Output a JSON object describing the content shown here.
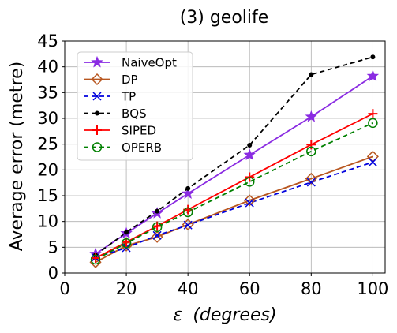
{
  "chart_data": {
    "type": "line",
    "title": "(3) geolife",
    "xlabel_symbol": "ε",
    "xlabel_unit": "(degrees)",
    "ylabel": "Average error (metre)",
    "xlim": [
      0,
      104
    ],
    "ylim": [
      0,
      45
    ],
    "xticks": [
      0,
      20,
      40,
      60,
      80,
      100
    ],
    "yticks": [
      0,
      5,
      10,
      15,
      20,
      25,
      30,
      35,
      40,
      45
    ],
    "grid": true,
    "legend_position": "top-left",
    "x": [
      10,
      20,
      30,
      40,
      60,
      80,
      100
    ],
    "series": [
      {
        "name": "NaiveOpt",
        "color": "#8a2be2",
        "marker": "star",
        "dash": "solid",
        "values": [
          3.7,
          7.7,
          11.6,
          15.4,
          22.9,
          30.3,
          38.2
        ]
      },
      {
        "name": "DP",
        "color": "#b8561f",
        "marker": "diamond",
        "dash": "solid",
        "values": [
          2.1,
          5.3,
          7.0,
          9.4,
          14.1,
          18.3,
          22.6
        ]
      },
      {
        "name": "TP",
        "color": "#0000dd",
        "marker": "x",
        "dash": "dashed",
        "values": [
          3.0,
          4.9,
          7.3,
          9.3,
          13.6,
          17.6,
          21.5
        ]
      },
      {
        "name": "BQS",
        "color": "#000000",
        "marker": "dot",
        "dash": "dashed",
        "values": [
          3.5,
          7.9,
          12.0,
          16.4,
          24.8,
          38.5,
          41.9
        ]
      },
      {
        "name": "SIPED",
        "color": "#ff0000",
        "marker": "plus",
        "dash": "solid",
        "values": [
          2.9,
          6.0,
          9.1,
          12.3,
          18.6,
          24.9,
          30.9
        ]
      },
      {
        "name": "OPERB",
        "color": "#008000",
        "marker": "circle",
        "dash": "dashed",
        "values": [
          2.6,
          5.8,
          8.9,
          11.8,
          17.7,
          23.6,
          29.1
        ]
      }
    ]
  }
}
